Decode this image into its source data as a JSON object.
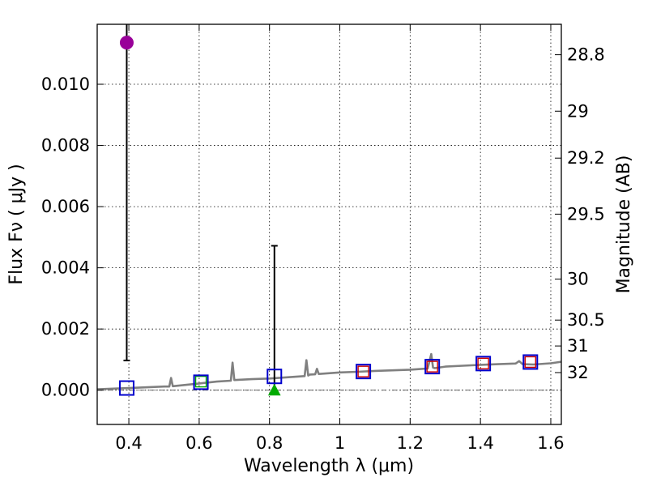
{
  "chart_data": {
    "type": "scatter",
    "xlabel": "Wavelength  λ (μm)",
    "ylabel": "Flux  Fν  ( μJy )",
    "ylabel_right": "Magnitude (AB)",
    "xlim": [
      0.31,
      1.63
    ],
    "ylim": [
      -0.00112,
      0.01196
    ],
    "grid": true,
    "x_ticks": [
      {
        "value": 0.4,
        "label": "0.4"
      },
      {
        "value": 0.6,
        "label": "0.6"
      },
      {
        "value": 0.8,
        "label": "0.8"
      },
      {
        "value": 1.0,
        "label": "1"
      },
      {
        "value": 1.2,
        "label": "1.2"
      },
      {
        "value": 1.4,
        "label": "1.4"
      },
      {
        "value": 1.6,
        "label": "1.6"
      }
    ],
    "y_ticks": [
      {
        "value": 0.0,
        "label": "0.000"
      },
      {
        "value": 0.002,
        "label": "0.002"
      },
      {
        "value": 0.004,
        "label": "0.004"
      },
      {
        "value": 0.006,
        "label": "0.006"
      },
      {
        "value": 0.008,
        "label": "0.008"
      },
      {
        "value": 0.01,
        "label": "0.010"
      }
    ],
    "mag_ticks": [
      {
        "value": 28.8,
        "label": "28.8"
      },
      {
        "value": 29,
        "label": "29"
      },
      {
        "value": 29.2,
        "label": "29.2"
      },
      {
        "value": 29.5,
        "label": "29.5"
      },
      {
        "value": 30,
        "label": "30"
      },
      {
        "value": 30.5,
        "label": "30.5"
      },
      {
        "value": 31,
        "label": "31"
      },
      {
        "value": 32,
        "label": "32"
      }
    ],
    "model_spectrum": {
      "name": "model SED",
      "color": "#808080",
      "x": [
        0.31,
        0.4,
        0.5,
        0.515,
        0.52,
        0.525,
        0.55,
        0.6,
        0.65,
        0.69,
        0.695,
        0.7,
        0.75,
        0.8,
        0.85,
        0.9,
        0.905,
        0.91,
        0.915,
        0.93,
        0.935,
        0.94,
        1.0,
        1.05,
        1.1,
        1.15,
        1.2,
        1.25,
        1.26,
        1.265,
        1.27,
        1.3,
        1.35,
        1.4,
        1.45,
        1.5,
        1.51,
        1.52,
        1.55,
        1.6,
        1.63
      ],
      "y": [
        3e-05,
        7e-05,
        0.00012,
        0.00012,
        0.0004,
        0.00013,
        0.00016,
        0.00022,
        0.00028,
        0.00031,
        0.0009,
        0.00033,
        0.00036,
        0.00038,
        0.00042,
        0.00046,
        0.00098,
        0.00048,
        0.00051,
        0.00052,
        0.0007,
        0.00053,
        0.00058,
        0.0006,
        0.00063,
        0.00065,
        0.00067,
        0.00071,
        0.00118,
        0.00074,
        0.00072,
        0.00077,
        0.0008,
        0.00083,
        0.00085,
        0.00087,
        0.00095,
        0.00085,
        0.00084,
        0.00088,
        0.00093
      ]
    },
    "model_photometry": {
      "name": "model photometry",
      "color": "#0000cc",
      "x": [
        0.394,
        0.605,
        0.814,
        1.067,
        1.263,
        1.408,
        1.542
      ],
      "y": [
        7e-05,
        0.00026,
        0.00045,
        0.00061,
        0.00077,
        0.00087,
        0.00092
      ]
    },
    "observed_boxes": {
      "name": "observed fluxes",
      "x": [
        0.605,
        1.067,
        1.263,
        1.408,
        1.542
      ],
      "y": [
        0.00028,
        0.00061,
        0.00077,
        0.00087,
        0.00092
      ],
      "colors": [
        "#00aa00",
        "#cc0000",
        "#cc0000",
        "#cc0000",
        "#cc0000"
      ]
    },
    "detections_with_errors": [
      {
        "name": "magenta point",
        "x": 0.394,
        "y": 0.01136,
        "yerr_low": 0.01039,
        "color": "#990099",
        "marker": "circle"
      },
      {
        "name": "green triangle",
        "x": 0.814,
        "y": 0.0,
        "yerr_high": 0.00472,
        "color": "#00aa00",
        "marker": "triangle"
      }
    ]
  }
}
